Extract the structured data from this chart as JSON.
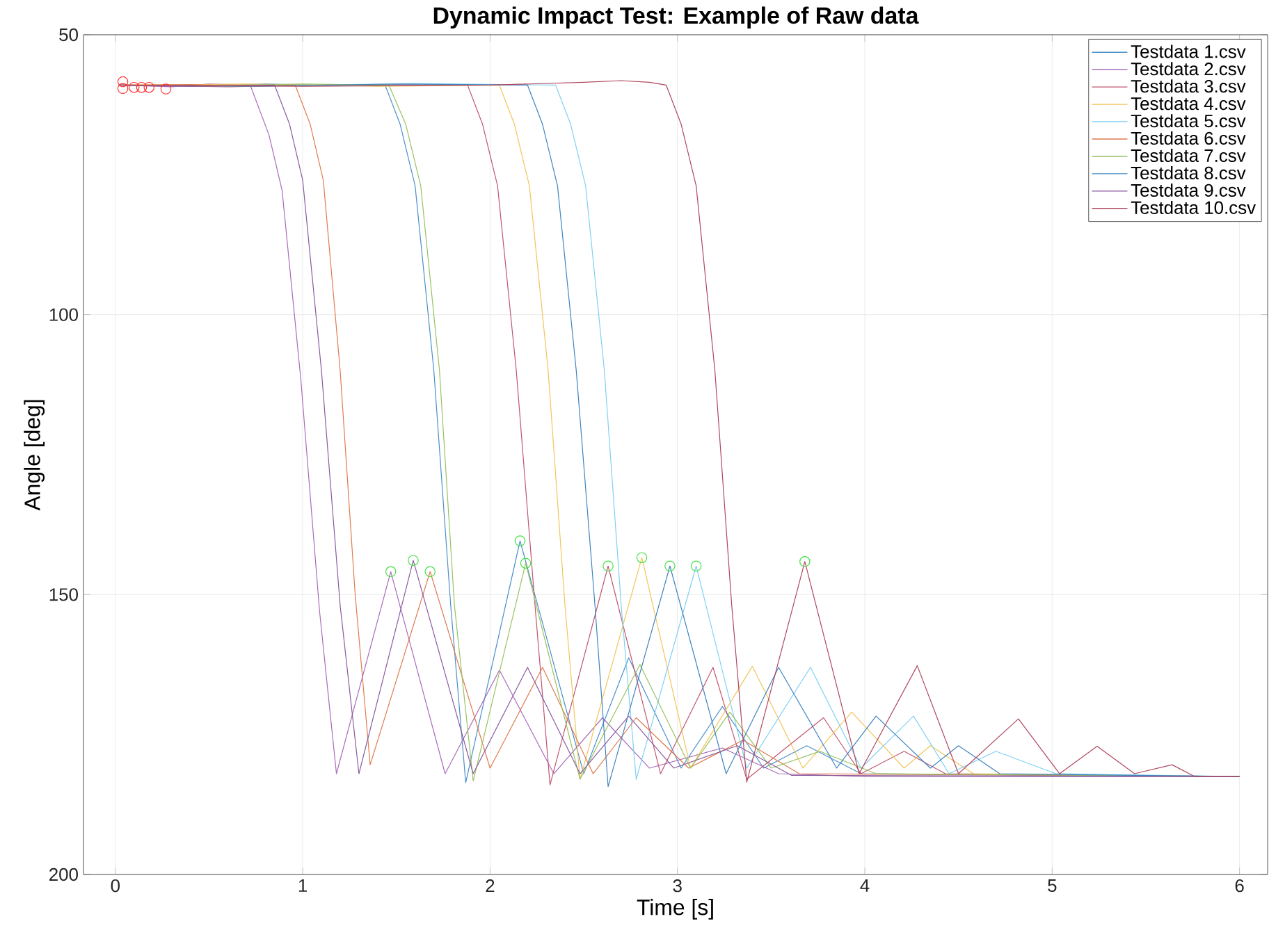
{
  "chart_data": {
    "type": "line",
    "title": "Dynamic Impact Test: Example of Raw data",
    "xlabel": "Time [s]",
    "ylabel": "Angle [deg]",
    "xlim": [
      -0.17,
      6.15
    ],
    "ylim": [
      200,
      50
    ],
    "xticks": [
      0,
      1,
      2,
      3,
      4,
      5,
      6
    ],
    "yticks": [
      50,
      100,
      150,
      200
    ],
    "grid": true,
    "legend": "top right",
    "line_style": "solid",
    "series": [
      {
        "name": "Testdata 1.csv",
        "color": "#4a90c8",
        "x": [
          0.02,
          0.4,
          0.8,
          1.2,
          1.44,
          1.52,
          1.6,
          1.7,
          1.79,
          1.87,
          2.16,
          2.5,
          2.74,
          3.02,
          3.24,
          3.46,
          3.69,
          3.98,
          6.0
        ],
        "values": [
          59,
          59.2,
          58.8,
          59.1,
          59,
          66,
          77,
          110,
          152,
          183.6,
          140.4,
          182,
          161.3,
          181,
          170,
          181,
          177,
          182,
          182.5
        ]
      },
      {
        "name": "Testdata 2.csv",
        "color": "#a86bbb",
        "x": [
          0.02,
          0.3,
          0.5,
          0.72,
          0.82,
          0.89,
          0.99,
          1.09,
          1.18,
          1.47,
          1.76,
          2.05,
          2.34,
          2.6,
          2.85,
          3.24,
          3.54,
          4.0,
          6.0
        ],
        "values": [
          59,
          59.3,
          58.8,
          59,
          67.9,
          77.8,
          111.6,
          153,
          182,
          145.9,
          182,
          163.5,
          182,
          172,
          181,
          177.4,
          182,
          182.5,
          182.5
        ]
      },
      {
        "name": "Testdata 3.csv",
        "color": "#c0566e",
        "x": [
          0.02,
          0.6,
          1.2,
          1.88,
          1.96,
          2.04,
          2.14,
          2.24,
          2.32,
          2.63,
          2.91,
          3.19,
          3.37,
          3.78,
          3.98,
          4.21,
          4.43,
          6.0
        ],
        "values": [
          59,
          59.3,
          58.9,
          59,
          66,
          77,
          110,
          152,
          184,
          144.9,
          182,
          163,
          183,
          172,
          182,
          178,
          182,
          182.5
        ]
      },
      {
        "name": "Testdata 4.csv",
        "color": "#f2c45a",
        "x": [
          0.02,
          0.7,
          1.4,
          2.05,
          2.13,
          2.21,
          2.31,
          2.4,
          2.48,
          2.81,
          3.07,
          3.4,
          3.67,
          3.93,
          4.21,
          4.35,
          4.58,
          6.0
        ],
        "values": [
          59,
          58.8,
          59.2,
          59,
          66,
          77,
          110,
          152,
          183,
          143.4,
          181,
          162.8,
          181,
          171,
          181,
          177,
          182,
          182.5
        ]
      },
      {
        "name": "Testdata 5.csv",
        "color": "#7fd0f2",
        "x": [
          0.02,
          0.8,
          1.6,
          2.35,
          2.43,
          2.51,
          2.61,
          2.7,
          2.78,
          3.1,
          3.37,
          3.71,
          3.98,
          4.26,
          4.45,
          4.7,
          5.02,
          6.0
        ],
        "values": [
          59,
          59.2,
          58.7,
          59,
          66,
          77,
          110,
          152,
          183,
          144.9,
          181,
          163,
          181,
          171.7,
          182,
          178,
          182,
          182.5
        ]
      },
      {
        "name": "Testdata 6.csv",
        "color": "#e07a50",
        "x": [
          0.02,
          0.4,
          0.7,
          0.96,
          1.04,
          1.11,
          1.2,
          1.28,
          1.36,
          1.68,
          2.0,
          2.28,
          2.55,
          2.78,
          3.06,
          3.35,
          3.65,
          6.0
        ],
        "values": [
          59,
          58.9,
          59.2,
          59,
          66,
          76,
          110,
          150,
          180.4,
          145.9,
          181,
          163,
          182,
          172,
          181,
          176,
          182,
          182.5
        ]
      },
      {
        "name": "Testdata 7.csv",
        "color": "#99c260",
        "x": [
          0.02,
          0.5,
          1.0,
          1.46,
          1.55,
          1.63,
          1.73,
          1.81,
          1.91,
          2.19,
          2.48,
          2.8,
          3.07,
          3.28,
          3.5,
          3.76,
          4.06,
          6.0
        ],
        "values": [
          59,
          59.1,
          58.8,
          59,
          66,
          77,
          110,
          152,
          183.3,
          144.4,
          183,
          162.5,
          181,
          171,
          181,
          178,
          182,
          182.5
        ]
      },
      {
        "name": "Testdata 8.csv",
        "color": "#3f84c0",
        "x": [
          0.02,
          0.7,
          1.5,
          2.2,
          2.28,
          2.36,
          2.46,
          2.56,
          2.63,
          2.96,
          3.26,
          3.54,
          3.85,
          4.06,
          4.35,
          4.5,
          4.72,
          6.0
        ],
        "values": [
          59,
          59.2,
          58.8,
          59,
          66,
          77,
          110,
          152,
          184.3,
          144.9,
          182,
          163,
          181,
          171.7,
          181,
          177,
          182,
          182.5
        ]
      },
      {
        "name": "Testdata 9.csv",
        "color": "#8a5a9e",
        "x": [
          0.02,
          0.4,
          0.85,
          0.93,
          1.0,
          1.1,
          1.2,
          1.3,
          1.59,
          1.91,
          2.2,
          2.48,
          2.74,
          2.98,
          3.32,
          3.61,
          6.0
        ],
        "values": [
          59,
          59.2,
          59,
          66,
          76,
          110,
          152,
          182,
          143.9,
          182,
          163,
          182,
          171.7,
          181,
          177,
          182.3,
          182.5
        ]
      },
      {
        "name": "Testdata 10.csv",
        "color": "#b0465e",
        "x": [
          0.02,
          1.0,
          2.0,
          2.5,
          2.7,
          2.85,
          2.94,
          3.02,
          3.1,
          3.2,
          3.29,
          3.37,
          3.68,
          3.97,
          4.28,
          4.5,
          4.82,
          5.04,
          5.24,
          5.44,
          5.64,
          5.76,
          6.0
        ],
        "values": [
          59,
          59.2,
          59,
          58.5,
          58.2,
          58.5,
          59,
          66,
          77,
          110,
          152,
          183.5,
          144.1,
          182,
          162.7,
          182,
          172.2,
          182,
          177.1,
          182,
          180.4,
          182.5,
          182.5
        ]
      },
      {
        "type": "scatter",
        "marker": "circle",
        "color": "#ff3030",
        "x": [
          0.04,
          0.04,
          0.1,
          0.14,
          0.18,
          0.27
        ],
        "values": [
          58.4,
          59.6,
          59.4,
          59.4,
          59.4,
          59.7
        ]
      },
      {
        "type": "scatter",
        "marker": "circle",
        "color": "#40e040",
        "x": [
          1.47,
          1.59,
          1.68,
          2.16,
          2.19,
          2.63,
          2.81,
          2.96,
          3.1,
          3.68
        ],
        "values": [
          145.9,
          143.9,
          145.9,
          140.4,
          144.4,
          144.9,
          143.4,
          144.9,
          144.9,
          144.1
        ]
      }
    ]
  }
}
